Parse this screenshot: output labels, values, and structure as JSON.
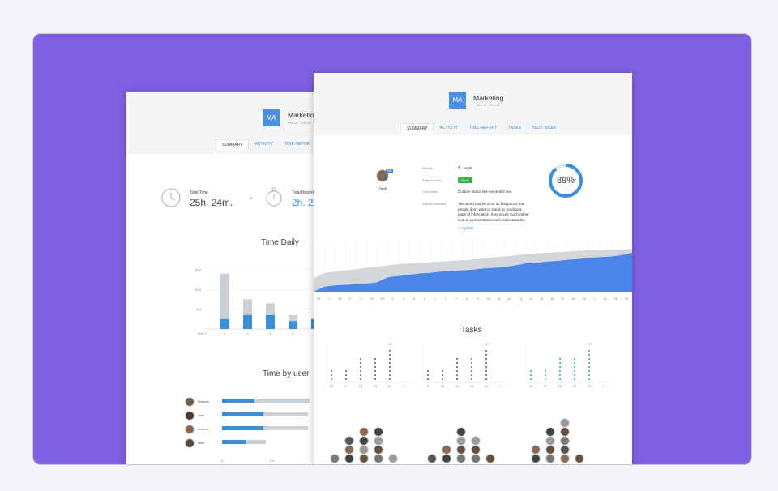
{
  "colors": {
    "frame": "#8060e0",
    "accent": "#3a8fd8",
    "grey": "#cbd0d5",
    "green": "#3bb54a",
    "teal": "#2aa6a6"
  },
  "back_card": {
    "avatar_initials": "MA",
    "title": "Marketing",
    "dates": "Feb 18 - Feb 25",
    "tabs": [
      "SUMMARY",
      "ACTIVITY",
      "TIME REPOR"
    ],
    "active_tab": 0,
    "total_time_label": "Total Time",
    "total_time_value": "25h. 24m.",
    "total_report_label": "Total Report",
    "total_report_value": "2h. 2",
    "time_daily_title": "Time Daily",
    "time_by_users_title": "Time by user",
    "clock_icon": "clock-icon",
    "stopwatch_icon": "stopwatch-icon",
    "users": [
      {
        "name": "Mathew",
        "total": 1.0,
        "tracked": 0.37
      },
      {
        "name": "Josh",
        "total": 0.98,
        "tracked": 0.47
      },
      {
        "name": "Andrew",
        "total": 0.98,
        "tracked": 0.47
      },
      {
        "name": "Mike",
        "total": 0.5,
        "tracked": 0.28
      }
    ],
    "users_axis": [
      "0",
      "5 h"
    ]
  },
  "front_card": {
    "avatar_initials": "MA",
    "title": "Marketing",
    "dates": "Feb 18 - Feb 25",
    "tabs": [
      "SUMMARY",
      "ACTIVITY",
      "TIME REPORT",
      "TASKS",
      "NEXT WEEK"
    ],
    "active_tab": 0,
    "person_name": "Josh",
    "person_badge": "PM",
    "priority_label": "Priority",
    "priority_value": "Hight",
    "status_label": "Project status",
    "status_value": "Open",
    "comments_label": "Comments",
    "comments_value": "Custom status line some text line",
    "report_label": "Report comment",
    "report_lines": [
      "The world has become so fast paced that",
      "people don't want to stand by reading a",
      "page of information, they would much rather",
      "look at a presentation and understand the"
    ],
    "update_label": "Update",
    "pencil_icon": "pencil-icon",
    "heart_icon": "heart-icon",
    "progress_value": "89%",
    "progress_fraction": 0.89,
    "tasks_title": "Tasks",
    "task_annotations": [
      "+22",
      "+22",
      "+22"
    ]
  },
  "chart_data": [
    {
      "type": "bar",
      "title": "Time Daily",
      "categories": [
        "May 1",
        "2",
        "3",
        "4",
        "5",
        "6"
      ],
      "series": [
        {
          "name": "total",
          "values": [
            0,
            14,
            7.5,
            6.5,
            3.5,
            2.5
          ]
        },
        {
          "name": "tracked",
          "values": [
            0,
            2.5,
            3.5,
            3.5,
            2,
            2.5
          ]
        }
      ],
      "yticks": [
        "15 h",
        "10 h",
        "5 h"
      ],
      "ylim": [
        0,
        16
      ]
    },
    {
      "type": "area",
      "x": [
        "23",
        "25",
        "26",
        "27",
        "28",
        "29",
        "30",
        "1",
        "2",
        "3",
        "4",
        "5",
        "6",
        "7",
        "8",
        "9",
        "10",
        "11",
        "12",
        "13",
        "14",
        "15",
        "16",
        "17",
        "18",
        "19",
        "20",
        "21",
        "22",
        "23",
        "24"
      ],
      "series": [
        {
          "name": "grey",
          "values": [
            2.2,
            3,
            3.2,
            3.4,
            3.6,
            3.8,
            4,
            4.2,
            4.4,
            4.5,
            4.6,
            4.7,
            4.8,
            4.9,
            5.0,
            5.1,
            5.3,
            5.5,
            5.6,
            5.8,
            6.0,
            6.1,
            6.2,
            6.3,
            6.4,
            6.5,
            6.6,
            6.6,
            6.7,
            6.7,
            6.8
          ]
        },
        {
          "name": "blue",
          "values": [
            0,
            0.8,
            1.0,
            1.1,
            1.2,
            1.3,
            1.5,
            2.3,
            2.5,
            2.7,
            2.9,
            3.0,
            3.2,
            3.3,
            3.4,
            3.5,
            3.7,
            3.8,
            3.9,
            4.2,
            4.5,
            4.6,
            4.8,
            4.9,
            5.1,
            5.2,
            5.4,
            5.5,
            5.6,
            5.8,
            6.2
          ]
        }
      ],
      "ylim": [
        0,
        8
      ]
    },
    {
      "type": "scatter",
      "title": "Tasks",
      "groups": [
        {
          "x": [
            "16",
            "17",
            "18",
            "19",
            "20",
            "21"
          ],
          "counts": [
            3,
            3,
            6,
            6,
            8,
            0
          ]
        },
        {
          "x": [
            "9",
            "10",
            "11",
            "12",
            "13",
            "14"
          ],
          "counts": [
            3,
            3,
            6,
            6,
            8,
            0
          ]
        },
        {
          "x": [
            "16",
            "17",
            "18",
            "19",
            "20",
            "21"
          ],
          "counts": [
            3,
            3,
            6,
            6,
            8,
            0
          ]
        }
      ]
    }
  ]
}
